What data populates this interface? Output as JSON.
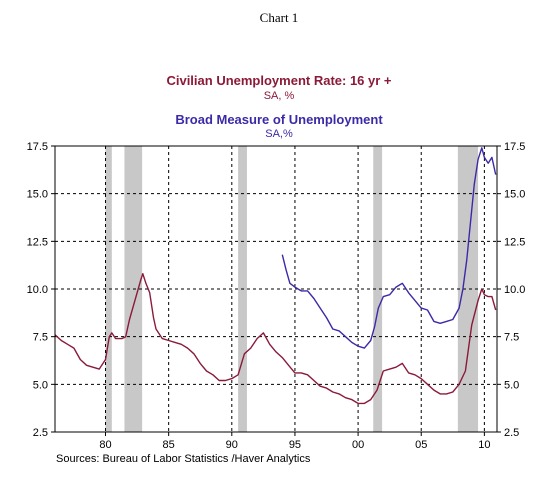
{
  "header": {
    "chart_number": "Chart 1",
    "series1_title": "Civilian Unemployment Rate: 16 yr +",
    "series1_units": "SA, %",
    "series2_title": "Broad Measure of Unemployment",
    "series2_units": "SA,%",
    "source": "Sources:  Bureau of Labor Statistics /Haver Analytics"
  },
  "colors": {
    "series1": "#8b1a3a",
    "series2": "#3b2aa8",
    "recession": "#c8c8c8",
    "grid": "#000000"
  },
  "chart_data": {
    "type": "line",
    "xlim": [
      1976.0,
      2011.0
    ],
    "ylim": [
      2.5,
      17.5
    ],
    "grid": true,
    "x_ticks": [
      1980,
      1985,
      1990,
      1995,
      2000,
      2005,
      2010
    ],
    "x_tick_labels": [
      "80",
      "85",
      "90",
      "95",
      "00",
      "05",
      "10"
    ],
    "y_ticks": [
      2.5,
      5.0,
      7.5,
      10.0,
      12.5,
      15.0,
      17.5
    ],
    "y_tick_labels": [
      "2.5",
      "5.0",
      "7.5",
      "10.0",
      "12.5",
      "15.0",
      "17.5"
    ],
    "recessions": [
      [
        1980.0,
        1980.5
      ],
      [
        1981.5,
        1982.9
      ],
      [
        1990.5,
        1991.2
      ],
      [
        2001.2,
        2001.9
      ],
      [
        2007.9,
        2009.5
      ]
    ],
    "series": [
      {
        "name": "Civilian Unemployment Rate: 16 yr +",
        "x": [
          1976.0,
          1976.5,
          1977.0,
          1977.5,
          1978.0,
          1978.5,
          1979.0,
          1979.5,
          1980.0,
          1980.3,
          1980.5,
          1980.8,
          1981.0,
          1981.3,
          1981.6,
          1981.9,
          1982.2,
          1982.5,
          1982.8,
          1982.95,
          1983.2,
          1983.5,
          1983.8,
          1984.0,
          1984.5,
          1985.0,
          1985.5,
          1986.0,
          1986.5,
          1987.0,
          1987.5,
          1988.0,
          1988.5,
          1989.0,
          1989.5,
          1990.0,
          1990.5,
          1991.0,
          1991.5,
          1992.0,
          1992.5,
          1993.0,
          1993.5,
          1994.0,
          1994.5,
          1995.0,
          1995.5,
          1996.0,
          1996.5,
          1997.0,
          1997.5,
          1998.0,
          1998.5,
          1999.0,
          1999.5,
          2000.0,
          2000.5,
          2001.0,
          2001.5,
          2002.0,
          2002.5,
          2003.0,
          2003.5,
          2004.0,
          2004.5,
          2005.0,
          2005.5,
          2006.0,
          2006.5,
          2007.0,
          2007.5,
          2008.0,
          2008.5,
          2009.0,
          2009.5,
          2009.8,
          2010.0,
          2010.3,
          2010.6,
          2010.9
        ],
        "values": [
          7.6,
          7.3,
          7.1,
          6.9,
          6.3,
          6.0,
          5.9,
          5.8,
          6.3,
          7.5,
          7.7,
          7.4,
          7.4,
          7.4,
          7.5,
          8.4,
          9.1,
          9.8,
          10.5,
          10.8,
          10.3,
          9.8,
          8.5,
          7.9,
          7.4,
          7.3,
          7.2,
          7.1,
          6.9,
          6.6,
          6.1,
          5.7,
          5.5,
          5.2,
          5.2,
          5.3,
          5.5,
          6.6,
          6.9,
          7.4,
          7.7,
          7.1,
          6.7,
          6.4,
          6.0,
          5.6,
          5.6,
          5.5,
          5.2,
          4.9,
          4.8,
          4.6,
          4.5,
          4.3,
          4.2,
          4.0,
          4.0,
          4.2,
          4.7,
          5.7,
          5.8,
          5.9,
          6.1,
          5.6,
          5.5,
          5.3,
          5.0,
          4.7,
          4.5,
          4.5,
          4.6,
          5.0,
          5.7,
          8.1,
          9.4,
          10.0,
          9.7,
          9.6,
          9.6,
          8.9
        ]
      },
      {
        "name": "Broad Measure of Unemployment",
        "x": [
          1994.0,
          1994.3,
          1994.6,
          1995.0,
          1995.5,
          1996.0,
          1996.5,
          1997.0,
          1997.5,
          1998.0,
          1998.5,
          1999.0,
          1999.5,
          2000.0,
          2000.5,
          2001.0,
          2001.3,
          2001.6,
          2002.0,
          2002.5,
          2003.0,
          2003.5,
          2004.0,
          2004.5,
          2005.0,
          2005.5,
          2006.0,
          2006.5,
          2007.0,
          2007.5,
          2008.0,
          2008.3,
          2008.6,
          2008.9,
          2009.2,
          2009.5,
          2009.8,
          2010.0,
          2010.3,
          2010.6,
          2010.9
        ],
        "values": [
          11.8,
          11.0,
          10.3,
          10.1,
          9.9,
          9.9,
          9.5,
          9.0,
          8.5,
          7.9,
          7.8,
          7.5,
          7.2,
          7.0,
          6.9,
          7.3,
          8.0,
          9.0,
          9.6,
          9.7,
          10.1,
          10.3,
          9.8,
          9.4,
          9.0,
          8.9,
          8.3,
          8.2,
          8.3,
          8.4,
          9.0,
          10.0,
          11.5,
          13.5,
          15.5,
          16.8,
          17.4,
          16.9,
          16.6,
          16.9,
          16.0
        ]
      }
    ]
  }
}
